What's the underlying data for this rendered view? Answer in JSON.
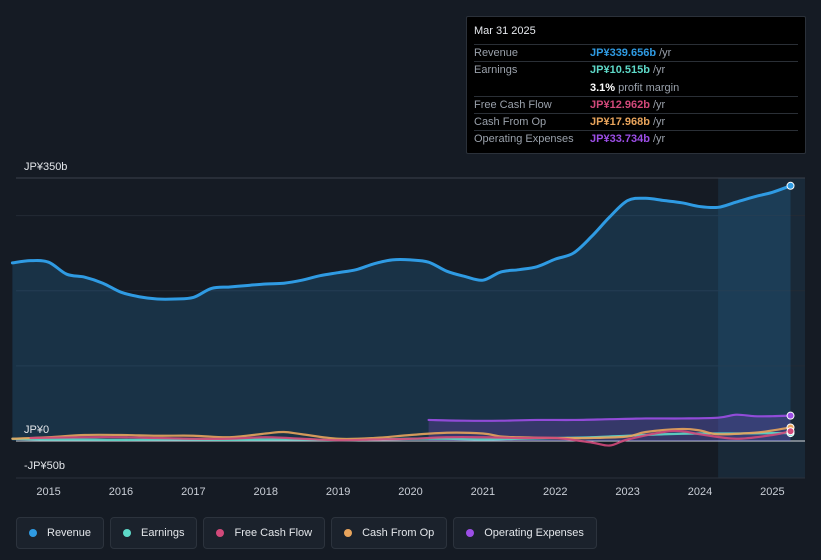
{
  "chart_data": {
    "type": "line",
    "title": "",
    "xlabel": "",
    "ylabel": "",
    "ylim": [
      -50,
      350
    ],
    "y_tick_labels": [
      {
        "value": 350,
        "label": "JP¥350b"
      },
      {
        "value": 0,
        "label": "JP¥0"
      },
      {
        "value": -50,
        "label": "-JP¥50b"
      }
    ],
    "x_tick_labels": [
      "2015",
      "2016",
      "2017",
      "2018",
      "2019",
      "2020",
      "2021",
      "2022",
      "2023",
      "2024",
      "2025"
    ],
    "x_tick_values": [
      2015,
      2016,
      2017,
      2018,
      2019,
      2020,
      2021,
      2022,
      2023,
      2024,
      2025
    ],
    "xlim": [
      2014.55,
      2025.45
    ],
    "highlight_start": 2024.25,
    "series": [
      {
        "name": "Revenue",
        "color": "#2f9be3",
        "fill": true,
        "points": [
          [
            2014.5,
            237
          ],
          [
            2014.75,
            240
          ],
          [
            2015.0,
            238
          ],
          [
            2015.25,
            222
          ],
          [
            2015.5,
            218
          ],
          [
            2015.75,
            210
          ],
          [
            2016.0,
            198
          ],
          [
            2016.25,
            192
          ],
          [
            2016.5,
            189
          ],
          [
            2016.75,
            189
          ],
          [
            2017.0,
            191
          ],
          [
            2017.25,
            203
          ],
          [
            2017.5,
            205
          ],
          [
            2017.75,
            207
          ],
          [
            2018.0,
            209
          ],
          [
            2018.25,
            210
          ],
          [
            2018.5,
            214
          ],
          [
            2018.75,
            220
          ],
          [
            2019.0,
            224
          ],
          [
            2019.25,
            228
          ],
          [
            2019.5,
            236
          ],
          [
            2019.75,
            241
          ],
          [
            2020.0,
            241
          ],
          [
            2020.25,
            238
          ],
          [
            2020.5,
            226
          ],
          [
            2020.75,
            219
          ],
          [
            2021.0,
            214
          ],
          [
            2021.25,
            225
          ],
          [
            2021.5,
            228
          ],
          [
            2021.75,
            232
          ],
          [
            2022.0,
            242
          ],
          [
            2022.25,
            250
          ],
          [
            2022.5,
            272
          ],
          [
            2022.75,
            298
          ],
          [
            2023.0,
            320
          ],
          [
            2023.25,
            323
          ],
          [
            2023.5,
            320
          ],
          [
            2023.75,
            317
          ],
          [
            2024.0,
            312
          ],
          [
            2024.25,
            311
          ],
          [
            2024.5,
            318
          ],
          [
            2024.75,
            325
          ],
          [
            2025.0,
            331
          ],
          [
            2025.25,
            339.656
          ]
        ]
      },
      {
        "name": "Earnings",
        "color": "#5ed9c8",
        "fill": false,
        "points": [
          [
            2014.5,
            3
          ],
          [
            2015.0,
            2
          ],
          [
            2015.5,
            2
          ],
          [
            2016.0,
            1.5
          ],
          [
            2016.5,
            2
          ],
          [
            2017.0,
            2
          ],
          [
            2017.5,
            1.5
          ],
          [
            2018.0,
            2
          ],
          [
            2018.5,
            2
          ],
          [
            2019.0,
            1
          ],
          [
            2019.5,
            2
          ],
          [
            2020.0,
            3
          ],
          [
            2020.5,
            3
          ],
          [
            2021.0,
            2
          ],
          [
            2021.5,
            3
          ],
          [
            2022.0,
            4
          ],
          [
            2022.5,
            5
          ],
          [
            2023.0,
            7
          ],
          [
            2023.5,
            9
          ],
          [
            2024.0,
            10
          ],
          [
            2024.5,
            10
          ],
          [
            2025.0,
            10.5
          ],
          [
            2025.25,
            10.515
          ]
        ]
      },
      {
        "name": "Free Cash Flow",
        "color": "#d2497a",
        "fill": false,
        "points": [
          [
            2014.75,
            4
          ],
          [
            2015.5,
            5
          ],
          [
            2016.0,
            5
          ],
          [
            2016.5,
            4
          ],
          [
            2017.0,
            3
          ],
          [
            2017.5,
            3
          ],
          [
            2018.0,
            5
          ],
          [
            2018.5,
            3
          ],
          [
            2019.0,
            1
          ],
          [
            2019.5,
            2
          ],
          [
            2020.0,
            3
          ],
          [
            2020.5,
            5
          ],
          [
            2021.0,
            5
          ],
          [
            2021.5,
            4
          ],
          [
            2022.0,
            4
          ],
          [
            2022.5,
            -2
          ],
          [
            2022.75,
            -6
          ],
          [
            2023.0,
            2
          ],
          [
            2023.5,
            12
          ],
          [
            2023.75,
            13
          ],
          [
            2024.0,
            9
          ],
          [
            2024.5,
            3
          ],
          [
            2025.0,
            8
          ],
          [
            2025.25,
            12.962
          ]
        ]
      },
      {
        "name": "Cash From Op",
        "color": "#e8a45c",
        "fill": false,
        "points": [
          [
            2014.5,
            3
          ],
          [
            2015.0,
            5
          ],
          [
            2015.5,
            8
          ],
          [
            2016.0,
            8
          ],
          [
            2016.5,
            7
          ],
          [
            2017.0,
            7
          ],
          [
            2017.5,
            5
          ],
          [
            2018.0,
            10
          ],
          [
            2018.25,
            12
          ],
          [
            2018.5,
            9
          ],
          [
            2019.0,
            3
          ],
          [
            2019.5,
            4
          ],
          [
            2020.0,
            8
          ],
          [
            2020.5,
            11
          ],
          [
            2021.0,
            10
          ],
          [
            2021.25,
            6
          ],
          [
            2021.5,
            5
          ],
          [
            2022.0,
            4
          ],
          [
            2022.5,
            4
          ],
          [
            2023.0,
            6
          ],
          [
            2023.25,
            12
          ],
          [
            2023.75,
            16
          ],
          [
            2024.0,
            14
          ],
          [
            2024.25,
            9
          ],
          [
            2024.75,
            11
          ],
          [
            2025.0,
            14
          ],
          [
            2025.25,
            17.968
          ]
        ]
      },
      {
        "name": "Operating Expenses",
        "color": "#9c4ee6",
        "fill": true,
        "points": [
          [
            2020.25,
            28
          ],
          [
            2020.75,
            27
          ],
          [
            2021.25,
            27
          ],
          [
            2021.75,
            28
          ],
          [
            2022.25,
            28
          ],
          [
            2022.75,
            29
          ],
          [
            2023.25,
            30
          ],
          [
            2023.75,
            30
          ],
          [
            2024.25,
            31
          ],
          [
            2024.5,
            35
          ],
          [
            2024.75,
            33
          ],
          [
            2025.0,
            33
          ],
          [
            2025.25,
            33.734
          ]
        ]
      }
    ]
  },
  "tooltip": {
    "date": "Mar 31 2025",
    "rows": [
      {
        "label": "Revenue",
        "value": "JP¥339.656b",
        "unit": "/yr",
        "color": "#2f9be3"
      },
      {
        "label": "Earnings",
        "value": "JP¥10.515b",
        "unit": "/yr",
        "color": "#5ed9c8"
      },
      {
        "label": "Free Cash Flow",
        "value": "JP¥12.962b",
        "unit": "/yr",
        "color": "#d2497a"
      },
      {
        "label": "Cash From Op",
        "value": "JP¥17.968b",
        "unit": "/yr",
        "color": "#e8a45c"
      },
      {
        "label": "Operating Expenses",
        "value": "JP¥33.734b",
        "unit": "/yr",
        "color": "#9c4ee6"
      }
    ],
    "profit_margin_value": "3.1%",
    "profit_margin_label": "profit margin"
  },
  "legend": [
    {
      "label": "Revenue",
      "color": "#2f9be3"
    },
    {
      "label": "Earnings",
      "color": "#5ed9c8"
    },
    {
      "label": "Free Cash Flow",
      "color": "#d2497a"
    },
    {
      "label": "Cash From Op",
      "color": "#e8a45c"
    },
    {
      "label": "Operating Expenses",
      "color": "#9c4ee6"
    }
  ]
}
